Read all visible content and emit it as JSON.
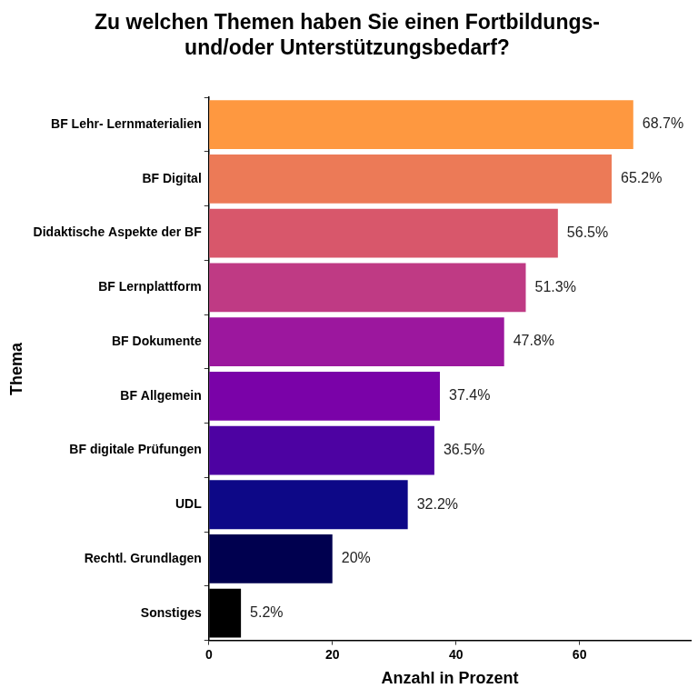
{
  "chart_data": {
    "type": "bar",
    "orientation": "horizontal",
    "title": "Zu welchen Themen haben Sie einen Fortbildungs-\nund/oder Unterstützungsbedarf?",
    "x_label": "Anzahl in Prozent",
    "y_label": "Thema",
    "categories": [
      "BF Lehr- Lernmaterialien",
      "BF Digital",
      "Didaktische Aspekte der BF",
      "BF Lernplattform",
      "BF Dokumente",
      "BF Allgemein",
      "BF digitale Prüfungen",
      "UDL",
      "Rechtl. Grundlagen",
      "Sonstiges"
    ],
    "values": [
      68.7,
      65.2,
      56.5,
      51.3,
      47.8,
      37.4,
      36.5,
      32.2,
      20,
      5.2
    ],
    "value_labels": [
      "68.7%",
      "65.2%",
      "56.5%",
      "51.3%",
      "47.8%",
      "37.4%",
      "36.5%",
      "32.2%",
      "20%",
      "5.2%"
    ],
    "colors": [
      "#fe9840",
      "#ec7a57",
      "#d8576b",
      "#bf3a84",
      "#9c179e",
      "#7a02a8",
      "#4d02a2",
      "#0d0887",
      "#00004f",
      "#000000"
    ],
    "xlim": [
      0,
      78
    ],
    "xticks": [
      0,
      20,
      40,
      60
    ],
    "grid": false,
    "data_labels": true
  }
}
